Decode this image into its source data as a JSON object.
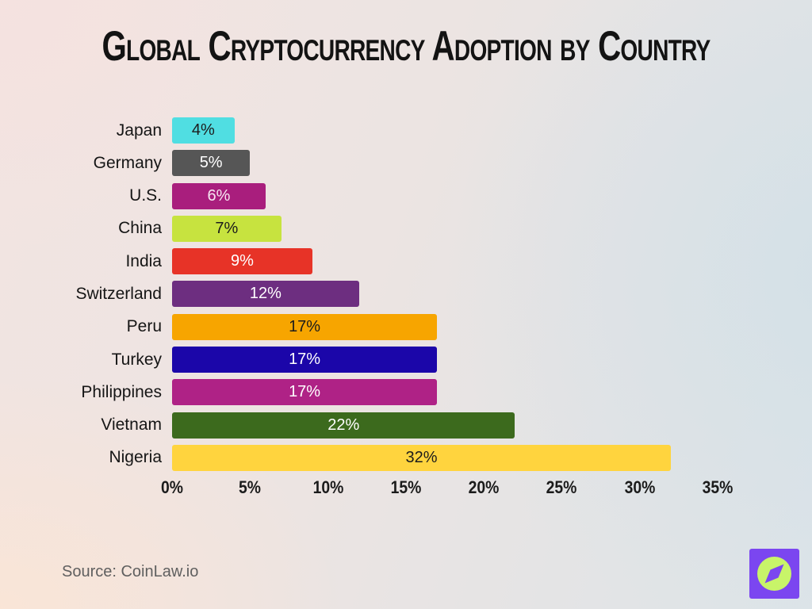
{
  "title": "Global Cryptocurrency Adoption by Country",
  "source": "Source: CoinLaw.io",
  "logo": {
    "name": "coinlaw-compass-logo",
    "square_color": "#7B46F0",
    "circle_color": "#C8F469",
    "needle_color": "#7B46F0"
  },
  "chart_data": {
    "type": "bar",
    "orientation": "horizontal",
    "title": "Global Cryptocurrency Adoption by Country",
    "xlabel": "",
    "ylabel": "",
    "xlim": [
      0,
      35
    ],
    "grid": false,
    "legend": "none",
    "x_ticks": [
      "0%",
      "5%",
      "10%",
      "15%",
      "20%",
      "25%",
      "30%",
      "35%"
    ],
    "x_tick_values": [
      0,
      5,
      10,
      15,
      20,
      25,
      30,
      35
    ],
    "categories": [
      "Japan",
      "Germany",
      "U.S.",
      "China",
      "India",
      "Switzerland",
      "Peru",
      "Turkey",
      "Philippines",
      "Vietnam",
      "Nigeria"
    ],
    "values": [
      4,
      5,
      6,
      7,
      9,
      12,
      17,
      17,
      17,
      22,
      32
    ],
    "bars": [
      {
        "country": "Japan",
        "value": 4,
        "label": "4%",
        "color": "#50DEE2",
        "text_color": "#1c1c1c"
      },
      {
        "country": "Germany",
        "value": 5,
        "label": "5%",
        "color": "#565656",
        "text_color": "#ffffff"
      },
      {
        "country": "U.S.",
        "value": 6,
        "label": "6%",
        "color": "#A91E7D",
        "text_color": "#f7e7f2"
      },
      {
        "country": "China",
        "value": 7,
        "label": "7%",
        "color": "#C7E33F",
        "text_color": "#1c1c1c"
      },
      {
        "country": "India",
        "value": 9,
        "label": "9%",
        "color": "#E73327",
        "text_color": "#ffffff"
      },
      {
        "country": "Switzerland",
        "value": 12,
        "label": "12%",
        "color": "#6D2E80",
        "text_color": "#ffffff"
      },
      {
        "country": "Peru",
        "value": 17,
        "label": "17%",
        "color": "#F7A500",
        "text_color": "#1c1c1c"
      },
      {
        "country": "Turkey",
        "value": 17,
        "label": "17%",
        "color": "#1B06A9",
        "text_color": "#ffffff"
      },
      {
        "country": "Philippines",
        "value": 17,
        "label": "17%",
        "color": "#AF2286",
        "text_color": "#ffffff"
      },
      {
        "country": "Vietnam",
        "value": 22,
        "label": "22%",
        "color": "#3C6A1D",
        "text_color": "#ffffff"
      },
      {
        "country": "Nigeria",
        "value": 32,
        "label": "32%",
        "color": "#FFD43E",
        "text_color": "#1c1c1c"
      }
    ]
  }
}
